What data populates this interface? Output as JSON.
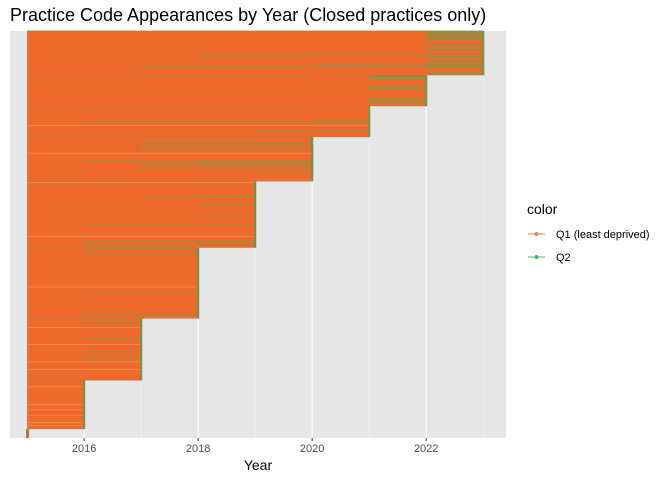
{
  "chart_data": {
    "type": "line",
    "title": "Practice Code Appearances by Year (Closed practices only)",
    "xlabel": "Year",
    "ylabel": "",
    "xlim": [
      2014.7,
      2023.4
    ],
    "x_ticks": [
      "2016",
      "2018",
      "2020",
      "2022"
    ],
    "x_tick_values": [
      2016,
      2018,
      2020,
      2022
    ],
    "y_ticks": [],
    "grid": true,
    "legend": {
      "title": "color",
      "placement": "right",
      "entries": [
        {
          "label": "Q1 (least deprived)",
          "color": "#f07d4a"
        },
        {
          "label": "Q2",
          "color": "#4db371"
        }
      ]
    },
    "colors": {
      "q1_line": "#ef6a2a",
      "q2_line": "#35b55a",
      "panel_background": "#e6e6e6"
    },
    "note_series": "Each practice is a horizontal segment from its first appearance (2015) to its final year before closure; practices stacked vertically, grouped by closure year.",
    "closure_groups": [
      {
        "end_year": 2015.0,
        "share_of_practices": 0.02
      },
      {
        "end_year": 2016.0,
        "share_of_practices": 0.11
      },
      {
        "end_year": 2017.0,
        "share_of_practices": 0.14
      },
      {
        "end_year": 2018.0,
        "share_of_practices": 0.16
      },
      {
        "end_year": 2019.0,
        "share_of_practices": 0.15
      },
      {
        "end_year": 2020.0,
        "share_of_practices": 0.1
      },
      {
        "end_year": 2021.0,
        "share_of_practices": 0.07
      },
      {
        "end_year": 2022.0,
        "share_of_practices": 0.07
      },
      {
        "end_year": 2023.0,
        "share_of_practices": 0.1
      }
    ]
  }
}
